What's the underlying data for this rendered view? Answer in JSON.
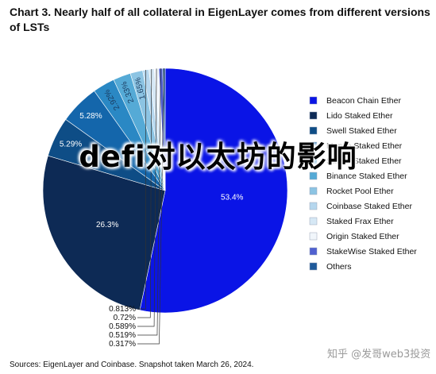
{
  "title": "Chart 3. Nearly half of all collateral in EigenLayer comes from different versions of LSTs",
  "overlay_text": "defi对以太坊的影响",
  "source": "Sources: EigenLayer and Coinbase. Snapshot taken March 26, 2024.",
  "watermark": "知乎 @发哥web3投资",
  "chart_data": {
    "type": "pie",
    "title": "Chart 3. Nearly half of all collateral in EigenLayer comes from different versions of LSTs",
    "legend_position": "right",
    "slices": [
      {
        "name": "Beacon Chain Ether",
        "value": 53.4,
        "label": "53.4%",
        "color": "#0a14e6"
      },
      {
        "name": "Lido Staked Ether",
        "value": 26.3,
        "label": "26.3%",
        "color": "#0d2a55"
      },
      {
        "name": "Swell Staked Ether",
        "value": 5.29,
        "label": "5.29%",
        "color": "#0e4d86"
      },
      {
        "name": "Mantle Staked Ether",
        "value": 5.28,
        "label": "5.28%",
        "color": "#1466ab"
      },
      {
        "name": "Stader Staked Ether",
        "value": 2.92,
        "label": "2.92%",
        "color": "#2a88c4"
      },
      {
        "name": "Binance Staked Ether",
        "value": 2.33,
        "label": "2.33%",
        "color": "#55aad6"
      },
      {
        "name": "Rocket Pool Ether",
        "value": 1.65,
        "label": "1.65%",
        "color": "#8cc4e3"
      },
      {
        "name": "Coinbase Staked Ether",
        "value": 0.813,
        "label": "0.813%",
        "color": "#b6d7ee"
      },
      {
        "name": "Staked Frax Ether",
        "value": 0.72,
        "label": "0.72%",
        "color": "#d6e8f5"
      },
      {
        "name": "Origin Staked Ether",
        "value": 0.589,
        "label": "0.589%",
        "color": "#f1f6fb"
      },
      {
        "name": "StakeWise Staked Ether",
        "value": 0.519,
        "label": "0.519%",
        "color": "#5060d0"
      },
      {
        "name": "Others",
        "value": 0.317,
        "label": "0.317%",
        "color": "#1f5a9a"
      }
    ]
  }
}
